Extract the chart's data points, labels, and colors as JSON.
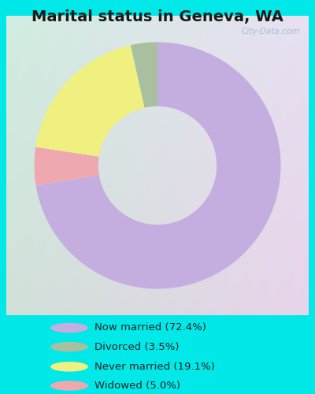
{
  "title": "Marital status in Geneva, WA",
  "values": [
    72.4,
    5.0,
    19.1,
    3.5
  ],
  "colors": [
    "#c4aee0",
    "#f0a8b0",
    "#f0f080",
    "#a8c0a0"
  ],
  "legend_labels": [
    "Now married (72.4%)",
    "Divorced (3.5%)",
    "Never married (19.1%)",
    "Widowed (5.0%)"
  ],
  "legend_colors": [
    "#c4aee0",
    "#a8c0a0",
    "#f0f080",
    "#f0a8b0"
  ],
  "bg_cyan": "#00e8e8",
  "chart_bg_top_left": "#d0ece0",
  "chart_bg_right": "#e8e4f4",
  "title_fontsize": 14,
  "watermark": "City-Data.com"
}
